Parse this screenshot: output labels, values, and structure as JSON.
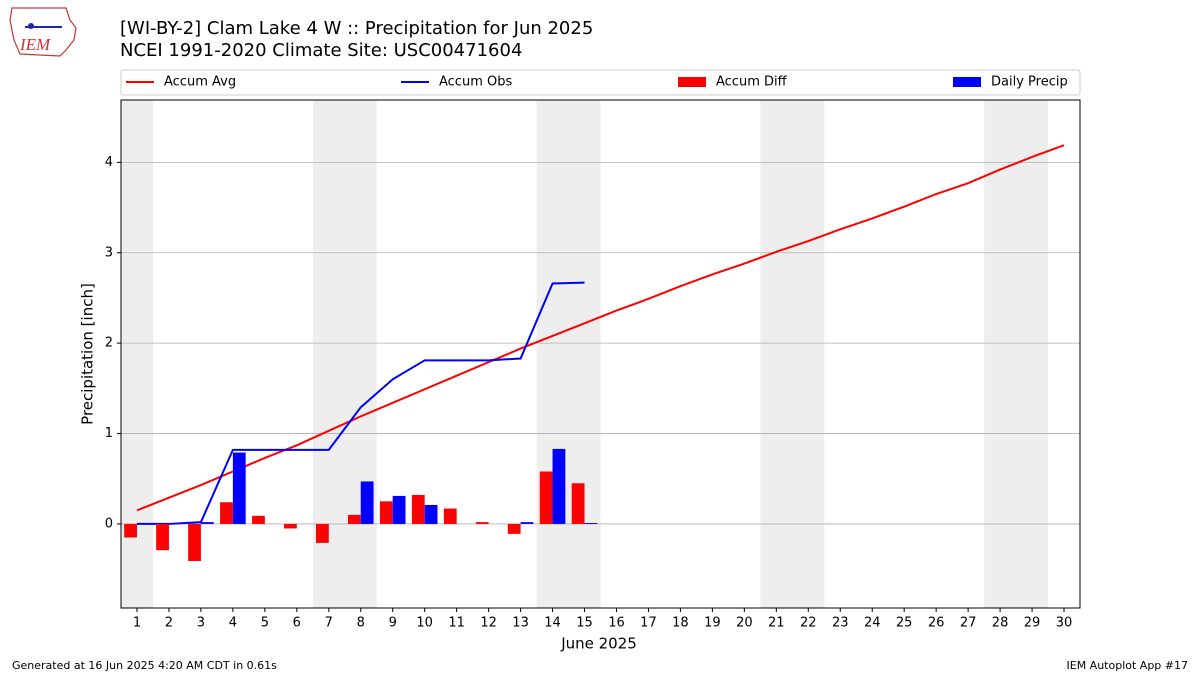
{
  "logo_text": "IEM",
  "footer_left": "Generated at 16 Jun 2025 4:20 AM CDT in 0.61s",
  "footer_right": "IEM Autoplot App #17",
  "chart_data": {
    "type": "combo",
    "title": "[WI-BY-2] Clam Lake 4 W :: Precipitation for Jun 2025",
    "subtitle": "NCEI 1991-2020 Climate Site: USC00471604",
    "x_label": "June 2025",
    "y_label": "Precipitation [inch]",
    "x": [
      1,
      2,
      3,
      4,
      5,
      6,
      7,
      8,
      9,
      10,
      11,
      12,
      13,
      14,
      15,
      16,
      17,
      18,
      19,
      20,
      21,
      22,
      23,
      24,
      25,
      26,
      27,
      28,
      29,
      30
    ],
    "xlim": [
      0.5,
      30.5
    ],
    "xticks": [
      1,
      2,
      3,
      4,
      5,
      6,
      7,
      8,
      9,
      10,
      11,
      12,
      13,
      14,
      15,
      16,
      17,
      18,
      19,
      20,
      21,
      22,
      23,
      24,
      25,
      26,
      27,
      28,
      29,
      30
    ],
    "ylim": [
      -0.93,
      4.69
    ],
    "yticks": [
      0,
      1,
      2,
      3,
      4
    ],
    "grid": true,
    "shaded_spans": [
      [
        0.5,
        1.5
      ],
      [
        6.5,
        8.5
      ],
      [
        13.5,
        15.5
      ],
      [
        20.5,
        22.5
      ],
      [
        27.5,
        29.5
      ]
    ],
    "series": [
      {
        "name": "Accum Avg",
        "kind": "line",
        "color": "#ff0000",
        "values": [
          0.15,
          0.29,
          0.43,
          0.58,
          0.73,
          0.87,
          1.03,
          1.19,
          1.34,
          1.49,
          1.64,
          1.79,
          1.94,
          2.08,
          2.22,
          2.36,
          2.49,
          2.63,
          2.76,
          2.88,
          3.01,
          3.13,
          3.26,
          3.38,
          3.51,
          3.65,
          3.77,
          3.92,
          4.06,
          4.19
        ]
      },
      {
        "name": "Accum Obs",
        "kind": "line",
        "color": "#0000ff",
        "values": [
          0,
          0,
          0.02,
          0.82,
          0.82,
          0.82,
          0.82,
          1.29,
          1.6,
          1.81,
          1.81,
          1.81,
          1.83,
          2.66,
          2.67,
          null,
          null,
          null,
          null,
          null,
          null,
          null,
          null,
          null,
          null,
          null,
          null,
          null,
          null,
          null
        ]
      },
      {
        "name": "Accum Diff",
        "kind": "bar",
        "side": "left",
        "color": "#ff0000",
        "values": [
          -0.15,
          -0.29,
          -0.41,
          0.24,
          0.09,
          -0.05,
          -0.21,
          0.1,
          0.25,
          0.32,
          0.17,
          0.02,
          -0.11,
          0.58,
          0.45,
          null,
          null,
          null,
          null,
          null,
          null,
          null,
          null,
          null,
          null,
          null,
          null,
          null,
          null,
          null
        ]
      },
      {
        "name": "Daily Precip",
        "kind": "bar",
        "side": "right",
        "color": "#0000ff",
        "values": [
          0,
          0,
          0.02,
          0.79,
          0,
          0,
          0,
          0.47,
          0.31,
          0.21,
          0,
          0,
          0.02,
          0.83,
          0.01,
          null,
          null,
          null,
          null,
          null,
          null,
          null,
          null,
          null,
          null,
          null,
          null,
          null,
          null,
          null
        ]
      }
    ]
  }
}
